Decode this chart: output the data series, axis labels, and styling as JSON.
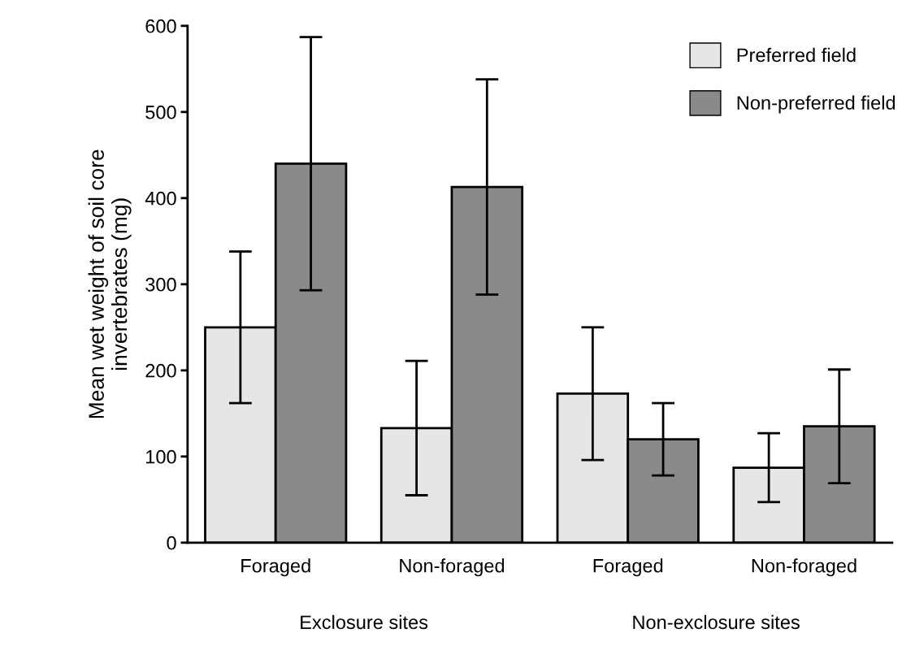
{
  "chart_data": {
    "type": "bar",
    "ylabel": "Mean wet weight of soil core\ninvertebrates (mg)",
    "categories": [
      "Foraged",
      "Non-foraged",
      "Foraged",
      "Non-foraged"
    ],
    "series": [
      {
        "name": "Preferred field",
        "color": "#e6e6e6",
        "values": [
          250,
          133,
          173,
          87
        ],
        "errors": [
          88,
          78,
          77,
          40
        ]
      },
      {
        "name": "Non-preferred field",
        "color": "#8a8a8a",
        "values": [
          440,
          413,
          120,
          135
        ],
        "errors": [
          147,
          125,
          42,
          66
        ]
      }
    ],
    "ylim": [
      0,
      600
    ],
    "yticks": [
      0,
      100,
      200,
      300,
      400,
      500,
      600
    ],
    "annotations": [
      "Exclosure sites",
      "Non-exclosure sites"
    ],
    "grid": false,
    "legend": "top right"
  }
}
